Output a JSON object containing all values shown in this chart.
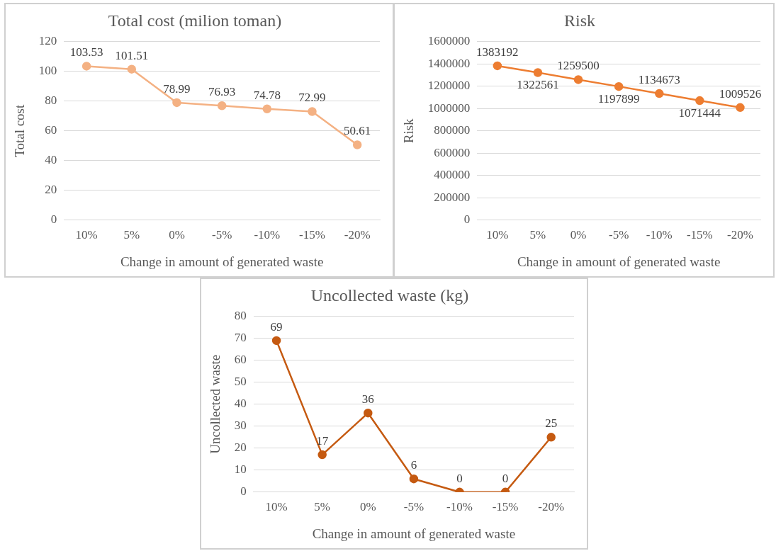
{
  "chart_data": [
    {
      "type": "line",
      "title": "Total cost (milion toman)",
      "xlabel": "Change in amount of generated waste",
      "ylabel": "Total cost",
      "categories": [
        "10%",
        "5%",
        "0%",
        "-5%",
        "-10%",
        "-15%",
        "-20%"
      ],
      "series": [
        {
          "color": "#f4b183",
          "values": [
            103.53,
            101.51,
            78.99,
            76.93,
            74.78,
            72.99,
            50.61
          ]
        }
      ],
      "ylim": [
        0,
        120
      ],
      "yticks": [
        0,
        20,
        40,
        60,
        80,
        100,
        120
      ],
      "grid": "y",
      "marker": "circle",
      "data_labels": true
    },
    {
      "type": "line",
      "title": "Risk",
      "xlabel": "Change in amount of generated waste",
      "ylabel": "Risk",
      "categories": [
        "10%",
        "5%",
        "0%",
        "-5%",
        "-10%",
        "-15%",
        "-20%"
      ],
      "series": [
        {
          "color": "#ed7d31",
          "values": [
            1383192,
            1322561,
            1259500,
            1197899,
            1134673,
            1071444,
            1009526
          ]
        }
      ],
      "ylim": [
        0,
        1600000
      ],
      "yticks": [
        0,
        200000,
        400000,
        600000,
        800000,
        1000000,
        1200000,
        1400000,
        1600000
      ],
      "grid": "y",
      "marker": "circle",
      "data_labels": true
    },
    {
      "type": "line",
      "title": "Uncollected waste (kg)",
      "xlabel": "Change in amount of generated waste",
      "ylabel": "Uncollected waste",
      "categories": [
        "10%",
        "5%",
        "0%",
        "-5%",
        "-10%",
        "-15%",
        "-20%"
      ],
      "series": [
        {
          "color": "#c55a11",
          "values": [
            69,
            17,
            36,
            6,
            0,
            0,
            25
          ]
        }
      ],
      "ylim": [
        0,
        80
      ],
      "yticks": [
        0,
        10,
        20,
        30,
        40,
        50,
        60,
        70,
        80
      ],
      "grid": "y",
      "marker": "circle",
      "data_labels": true
    }
  ]
}
